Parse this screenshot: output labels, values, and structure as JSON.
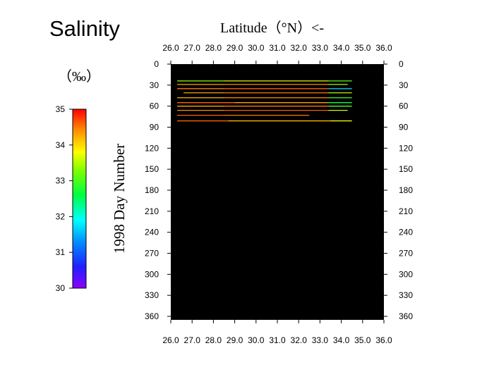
{
  "chart_data": {
    "type": "heatmap",
    "title": "Salinity",
    "xlabel": "Latitude（°N）<-",
    "ylabel": "1998   Day  Number",
    "xlim": [
      26.0,
      36.0
    ],
    "ylim": [
      0,
      365
    ],
    "x_ticks": [
      "26.0",
      "27.0",
      "28.0",
      "29.0",
      "30.0",
      "31.0",
      "32.0",
      "33.0",
      "34.0",
      "35.0",
      "36.0"
    ],
    "y_ticks": [
      "0",
      "30",
      "60",
      "90",
      "120",
      "150",
      "180",
      "210",
      "240",
      "270",
      "300",
      "330",
      "360"
    ],
    "colorbar": {
      "unit": "（‰）",
      "range": [
        30,
        35
      ],
      "ticks": [
        "30",
        "31",
        "32",
        "33",
        "34",
        "35"
      ]
    },
    "background_color": "#000000",
    "tracks": [
      {
        "day": 24,
        "segments": [
          {
            "x0": 26.3,
            "x1": 28.5,
            "value": 33.4
          },
          {
            "x0": 28.5,
            "x1": 33.4,
            "value": 33.7
          },
          {
            "x0": 33.4,
            "x1": 34.5,
            "value": 33.1
          }
        ]
      },
      {
        "day": 29,
        "segments": [
          {
            "x0": 26.3,
            "x1": 28.5,
            "value": 34.3
          },
          {
            "x0": 28.5,
            "x1": 33.4,
            "value": 34.4
          },
          {
            "x0": 33.4,
            "x1": 34.3,
            "value": 33.4
          }
        ]
      },
      {
        "day": 35,
        "segments": [
          {
            "x0": 26.3,
            "x1": 28.5,
            "value": 34.5
          },
          {
            "x0": 28.5,
            "x1": 33.4,
            "value": 34.6
          },
          {
            "x0": 33.4,
            "x1": 34.5,
            "value": 31.6
          }
        ]
      },
      {
        "day": 41,
        "segments": [
          {
            "x0": 26.6,
            "x1": 28.5,
            "value": 34.3
          },
          {
            "x0": 28.5,
            "x1": 33.4,
            "value": 34.5
          },
          {
            "x0": 33.4,
            "x1": 34.5,
            "value": 33.5
          }
        ]
      },
      {
        "day": 48,
        "segments": [
          {
            "x0": 26.3,
            "x1": 28.5,
            "value": 34.2
          },
          {
            "x0": 28.5,
            "x1": 33.4,
            "value": 34.4
          },
          {
            "x0": 33.4,
            "x1": 34.5,
            "value": 32.9
          }
        ]
      },
      {
        "day": 55,
        "segments": [
          {
            "x0": 26.3,
            "x1": 29.0,
            "value": 34.6
          },
          {
            "x0": 29.0,
            "x1": 33.4,
            "value": 34.3
          },
          {
            "x0": 33.4,
            "x1": 34.5,
            "value": 32.6
          }
        ]
      },
      {
        "day": 60,
        "segments": [
          {
            "x0": 26.3,
            "x1": 28.5,
            "value": 34.3
          },
          {
            "x0": 28.5,
            "x1": 33.4,
            "value": 34.5
          },
          {
            "x0": 33.4,
            "x1": 34.5,
            "value": 33.0
          }
        ]
      },
      {
        "day": 66,
        "segments": [
          {
            "x0": 26.3,
            "x1": 28.5,
            "value": 34.4
          },
          {
            "x0": 28.5,
            "x1": 33.4,
            "value": 34.6
          },
          {
            "x0": 33.4,
            "x1": 34.3,
            "value": 33.6
          }
        ]
      },
      {
        "day": 73,
        "segments": [
          {
            "x0": 26.3,
            "x1": 28.5,
            "value": 34.6
          },
          {
            "x0": 28.5,
            "x1": 32.5,
            "value": 34.5
          }
        ]
      },
      {
        "day": 81,
        "segments": [
          {
            "x0": 26.3,
            "x1": 28.7,
            "value": 34.6
          },
          {
            "x0": 28.7,
            "x1": 33.5,
            "value": 34.2
          },
          {
            "x0": 33.5,
            "x1": 34.5,
            "value": 33.7
          }
        ]
      }
    ]
  }
}
